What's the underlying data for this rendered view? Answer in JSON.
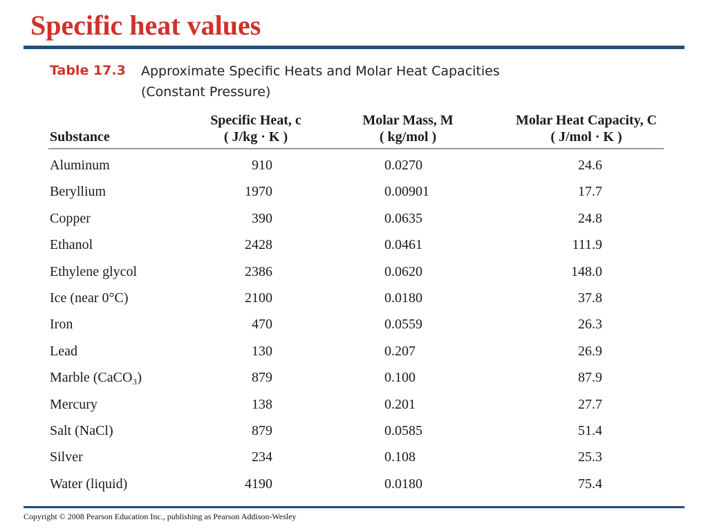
{
  "slide": {
    "title": "Specific heat values"
  },
  "table": {
    "caption_label": "Table 17.3",
    "caption_text": "Approximate Specific Heats and Molar Heat Capacities\n(Constant Pressure)",
    "headers": {
      "substance": "Substance",
      "specific_heat": "Specific Heat, c",
      "specific_heat_unit": "( J/kg · K )",
      "molar_mass": "Molar Mass, M",
      "molar_mass_unit": "( kg/mol )",
      "molar_heat": "Molar Heat Capacity, C",
      "molar_heat_unit": "( J/mol · K )"
    },
    "rows": [
      {
        "substance": "Aluminum",
        "specific_heat": "910",
        "molar_mass": "0.0270",
        "molar_heat": "24.6"
      },
      {
        "substance": "Beryllium",
        "specific_heat": "1970",
        "molar_mass": "0.00901",
        "molar_heat": "17.7"
      },
      {
        "substance": "Copper",
        "specific_heat": "390",
        "molar_mass": "0.0635",
        "molar_heat": "24.8"
      },
      {
        "substance": "Ethanol",
        "specific_heat": "2428",
        "molar_mass": "0.0461",
        "molar_heat": "111.9"
      },
      {
        "substance": "Ethylene glycol",
        "specific_heat": "2386",
        "molar_mass": "0.0620",
        "molar_heat": "148.0"
      },
      {
        "substance": "Ice (near 0°C)",
        "specific_heat": "2100",
        "molar_mass": "0.0180",
        "molar_heat": "37.8"
      },
      {
        "substance": "Iron",
        "specific_heat": "470",
        "molar_mass": "0.0559",
        "molar_heat": "26.3"
      },
      {
        "substance": "Lead",
        "specific_heat": "130",
        "molar_mass": "0.207",
        "molar_heat": "26.9"
      },
      {
        "substance": "Marble (CaCO₃)",
        "specific_heat": "879",
        "molar_mass": "0.100",
        "molar_heat": "87.9"
      },
      {
        "substance": "Mercury",
        "specific_heat": "138",
        "molar_mass": "0.201",
        "molar_heat": "27.7"
      },
      {
        "substance": "Salt (NaCl)",
        "specific_heat": "879",
        "molar_mass": "0.0585",
        "molar_heat": "51.4"
      },
      {
        "substance": "Silver",
        "specific_heat": "234",
        "molar_mass": "0.108",
        "molar_heat": "25.3"
      },
      {
        "substance": "Water (liquid)",
        "specific_heat": "4190",
        "molar_mass": "0.0180",
        "molar_heat": "75.4"
      }
    ]
  },
  "footer": {
    "copyright": "Copyright © 2008 Pearson Education Inc., publishing as Pearson Addison-Wesley"
  },
  "colors": {
    "title": "#d0312a",
    "rule": "#1f4e79",
    "header_rule": "#9a9a9a"
  }
}
